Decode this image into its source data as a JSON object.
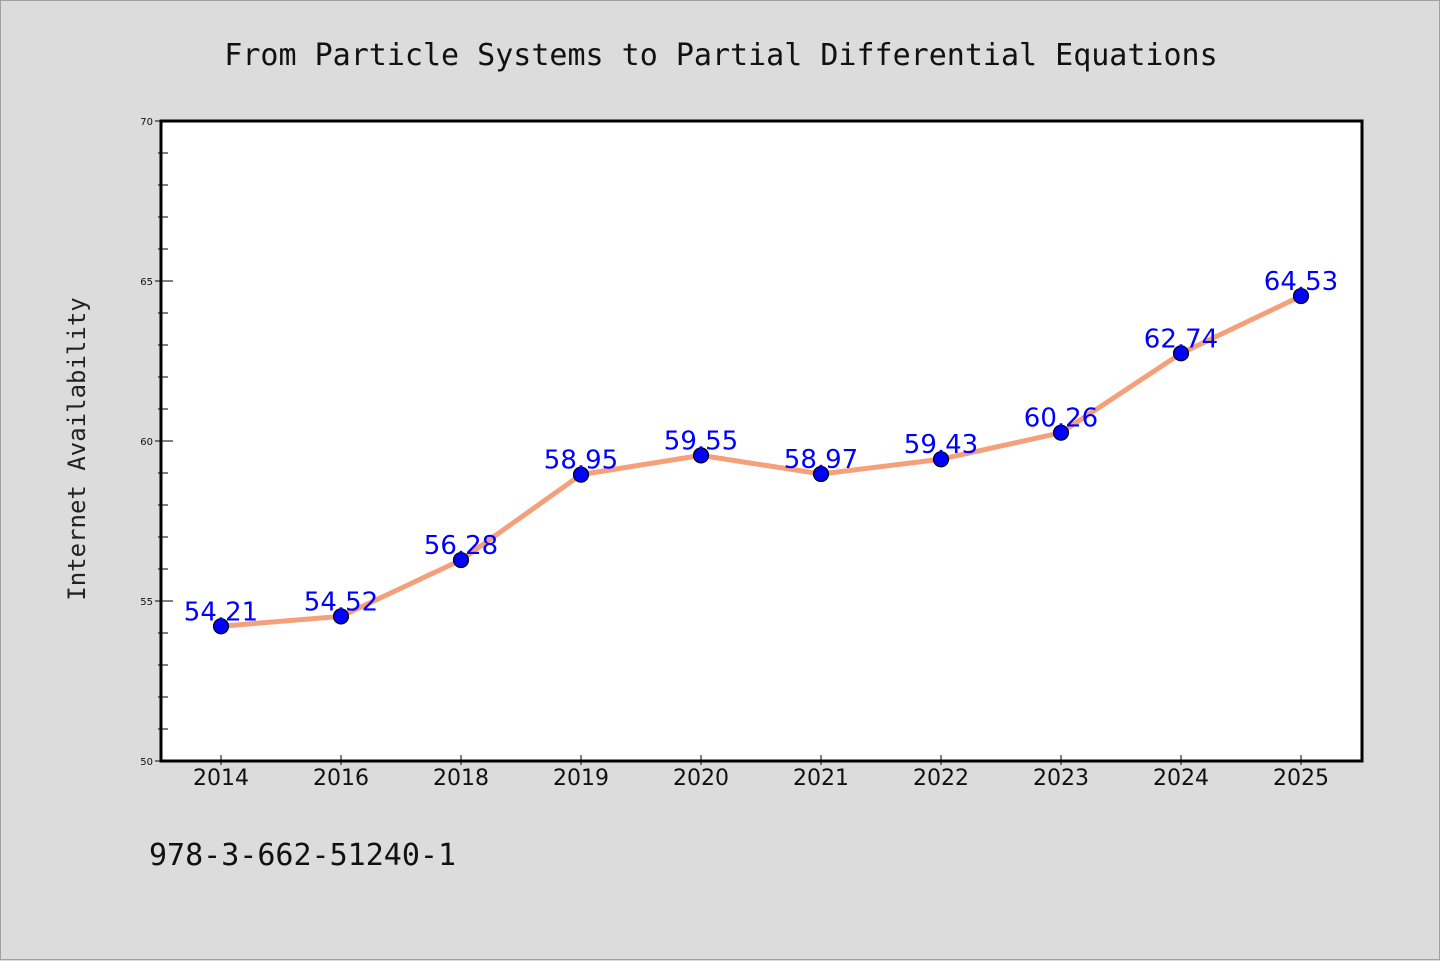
{
  "chart_data": {
    "type": "line",
    "title": "From Particle Systems to Partial Differential Equations",
    "xlabel": "",
    "ylabel": "Internet Availability",
    "categories": [
      "2014",
      "2016",
      "2018",
      "2019",
      "2020",
      "2021",
      "2022",
      "2023",
      "2024",
      "2025"
    ],
    "series": [
      {
        "values": [
          54.21,
          54.52,
          56.28,
          58.95,
          59.55,
          58.97,
          59.43,
          60.26,
          62.74,
          64.53
        ],
        "labels": [
          "54.21",
          "54.52",
          "56.28",
          "58.95",
          "59.55",
          "58.97",
          "59.43",
          "60.26",
          "62.74",
          "64.53"
        ],
        "line_color": "#f4a07a",
        "marker_color": "#0000ff"
      }
    ],
    "ylim": [
      50,
      70
    ],
    "yticks": [
      50,
      55,
      60,
      65,
      70
    ],
    "ytick_labels": [
      "50",
      "55",
      "60",
      "65",
      "70"
    ],
    "grid": false,
    "legend": "none"
  },
  "footer": {
    "identifier": "978-3-662-51240-1"
  },
  "colors": {
    "background": "#dcdcdc",
    "plot_background": "#ffffff",
    "axis": "#000000"
  }
}
